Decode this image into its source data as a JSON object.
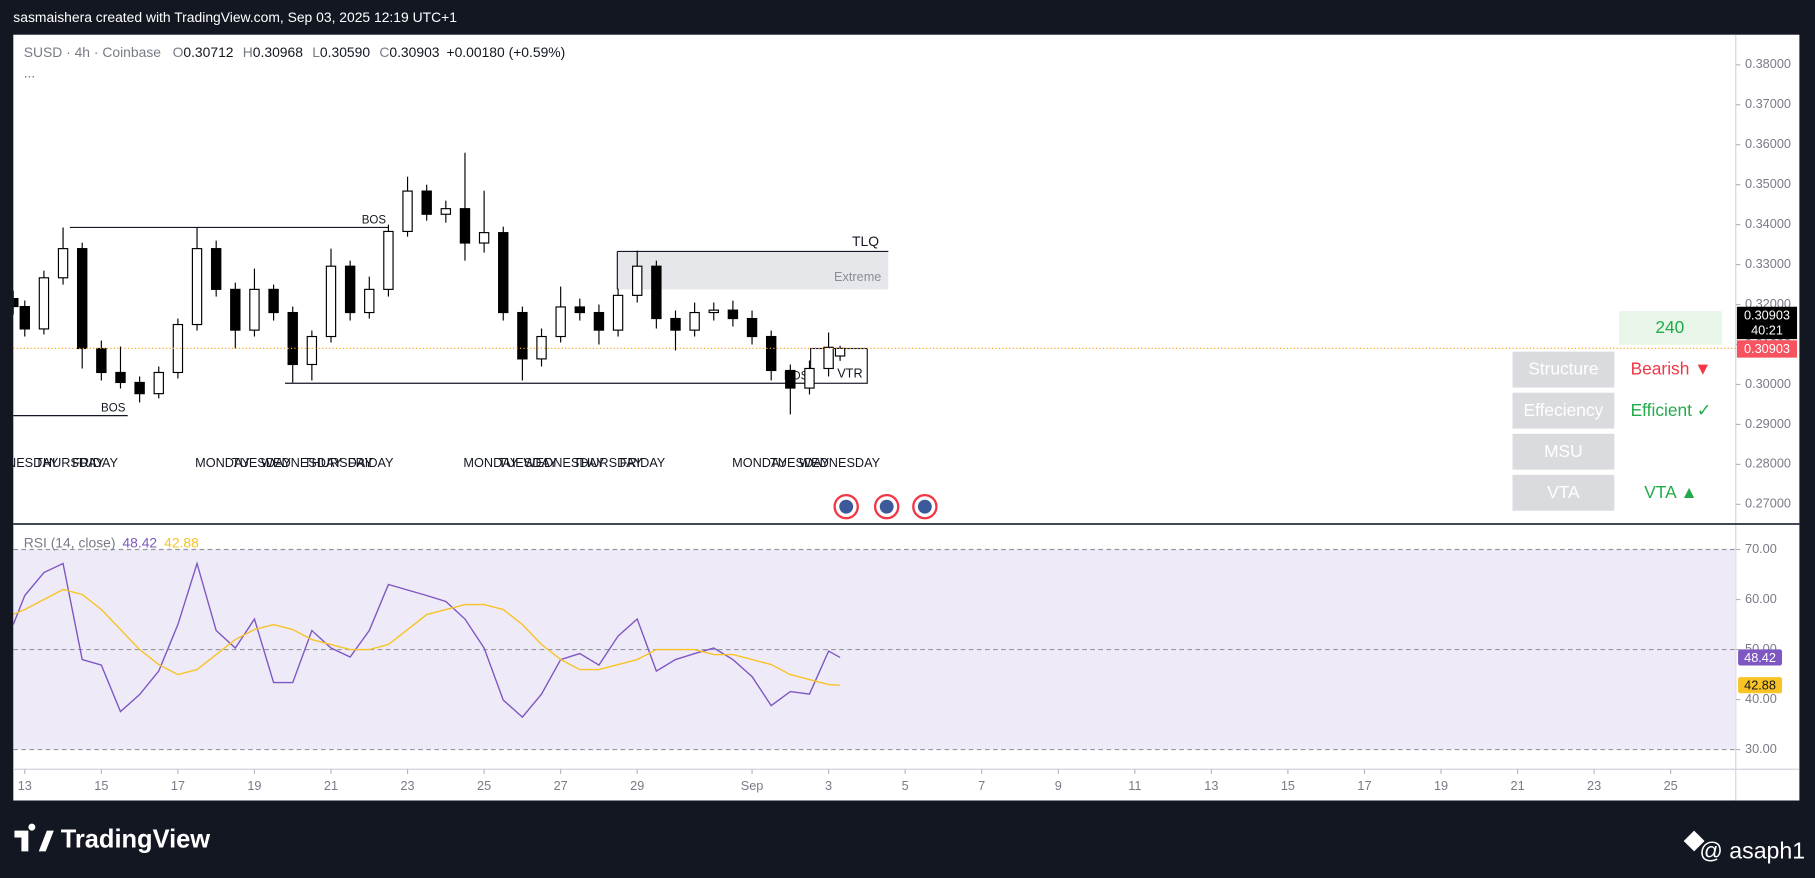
{
  "header": "sasmaishera created with TradingView.com, Sep 03, 2025 12:19 UTC+1",
  "footer": {
    "brand": "TradingView",
    "author": "@ asaph1"
  },
  "chart_data": [
    {
      "type": "candlestick",
      "symbol": "SUSD · 4h · Coinbase",
      "legend": [
        [
          "O",
          "0.30712"
        ],
        [
          "H",
          "0.30968"
        ],
        [
          "L",
          "0.30590"
        ],
        [
          "C",
          "0.30903"
        ]
      ],
      "change": "+0.00180 (+0.59%)",
      "more": "...",
      "x": [
        -0.3,
        0,
        0.5,
        1,
        1.5,
        2,
        2.5,
        3,
        3.5,
        4,
        4.5,
        5,
        5.5,
        6,
        6.5,
        7,
        7.5,
        8,
        8.5,
        9,
        9.5,
        10,
        10.5,
        11,
        11.5,
        12,
        12.5,
        13,
        13.5,
        14,
        14.5,
        15,
        15.5,
        16,
        16.5,
        17,
        17.5,
        18,
        18.5,
        19,
        19.5,
        20,
        20.5,
        21,
        21.3
      ],
      "candles": [
        [
          0.3215,
          0.3235,
          0.3175,
          0.3195
        ],
        [
          0.3195,
          0.321,
          0.312,
          0.3139
        ],
        [
          0.3139,
          0.3285,
          0.3125,
          0.3267
        ],
        [
          0.3267,
          0.3393,
          0.325,
          0.334
        ],
        [
          0.334,
          0.3355,
          0.304,
          0.309
        ],
        [
          0.309,
          0.311,
          0.301,
          0.303
        ],
        [
          0.303,
          0.3095,
          0.299,
          0.3005
        ],
        [
          0.3005,
          0.302,
          0.2955,
          0.2977
        ],
        [
          0.2977,
          0.3045,
          0.2965,
          0.303
        ],
        [
          0.303,
          0.3165,
          0.3015,
          0.315
        ],
        [
          0.315,
          0.3393,
          0.3135,
          0.334
        ],
        [
          0.334,
          0.336,
          0.322,
          0.3238
        ],
        [
          0.3238,
          0.3255,
          0.309,
          0.3136
        ],
        [
          0.3136,
          0.329,
          0.312,
          0.3238
        ],
        [
          0.3238,
          0.325,
          0.316,
          0.318
        ],
        [
          0.318,
          0.3195,
          0.3005,
          0.305
        ],
        [
          0.305,
          0.3135,
          0.301,
          0.312
        ],
        [
          0.312,
          0.334,
          0.3105,
          0.3296
        ],
        [
          0.3296,
          0.331,
          0.316,
          0.318
        ],
        [
          0.318,
          0.327,
          0.3165,
          0.3238
        ],
        [
          0.3238,
          0.34,
          0.322,
          0.3383
        ],
        [
          0.3383,
          0.352,
          0.337,
          0.3484
        ],
        [
          0.3484,
          0.35,
          0.341,
          0.3426
        ],
        [
          0.3426,
          0.346,
          0.3405,
          0.344
        ],
        [
          0.344,
          0.358,
          0.331,
          0.3354
        ],
        [
          0.3354,
          0.3485,
          0.333,
          0.338
        ],
        [
          0.338,
          0.3395,
          0.316,
          0.318
        ],
        [
          0.318,
          0.3195,
          0.301,
          0.3064
        ],
        [
          0.3064,
          0.314,
          0.3045,
          0.312
        ],
        [
          0.312,
          0.3245,
          0.3105,
          0.3194
        ],
        [
          0.3194,
          0.3215,
          0.316,
          0.318
        ],
        [
          0.318,
          0.32,
          0.31,
          0.3136
        ],
        [
          0.3136,
          0.324,
          0.312,
          0.3223
        ],
        [
          0.3223,
          0.3335,
          0.3205,
          0.3296
        ],
        [
          0.3296,
          0.331,
          0.314,
          0.3165
        ],
        [
          0.3165,
          0.3185,
          0.3085,
          0.3136
        ],
        [
          0.3136,
          0.3205,
          0.312,
          0.318
        ],
        [
          0.318,
          0.3205,
          0.316,
          0.3186
        ],
        [
          0.3186,
          0.321,
          0.3145,
          0.3165
        ],
        [
          0.3165,
          0.3185,
          0.31,
          0.312
        ],
        [
          0.312,
          0.3135,
          0.301,
          0.3035
        ],
        [
          0.3035,
          0.305,
          0.2925,
          0.2991
        ],
        [
          0.2991,
          0.306,
          0.2975,
          0.304
        ],
        [
          0.304,
          0.313,
          0.302,
          0.3093
        ],
        [
          0.30712,
          0.30968,
          0.3059,
          0.30903
        ]
      ],
      "up_color": "#ffffff",
      "down_color": "#000000",
      "outline_color": "#000000",
      "xlim": [
        -0.3,
        44.7
      ],
      "ylim": [
        0.26507,
        0.38754
      ],
      "yticks": [
        {
          "value": 0.27,
          "label": "0.27000"
        },
        {
          "value": 0.28,
          "label": "0.28000"
        },
        {
          "value": 0.29,
          "label": "0.29000"
        },
        {
          "value": 0.3,
          "label": "0.30000"
        },
        {
          "value": 0.31,
          "label": "0.31000"
        },
        {
          "value": 0.32,
          "label": "0.32000"
        },
        {
          "value": 0.33,
          "label": "0.33000"
        },
        {
          "value": 0.34,
          "label": "0.34000"
        },
        {
          "value": 0.35,
          "label": "0.35000"
        },
        {
          "value": 0.36,
          "label": "0.36000"
        },
        {
          "value": 0.37,
          "label": "0.37000"
        },
        {
          "value": 0.38,
          "label": "0.38000"
        }
      ],
      "xticks": [
        {
          "value": 0,
          "label": "13"
        },
        {
          "value": 2,
          "label": "15"
        },
        {
          "value": 4,
          "label": "17"
        },
        {
          "value": 6,
          "label": "19"
        },
        {
          "value": 8,
          "label": "21"
        },
        {
          "value": 10,
          "label": "23"
        },
        {
          "value": 12,
          "label": "25"
        },
        {
          "value": 14,
          "label": "27"
        },
        {
          "value": 16,
          "label": "29"
        },
        {
          "value": 19,
          "label": "Sep"
        },
        {
          "value": 21,
          "label": "3"
        },
        {
          "value": 23,
          "label": "5"
        },
        {
          "value": 25,
          "label": "7"
        },
        {
          "value": 27,
          "label": "9"
        },
        {
          "value": 29,
          "label": "11"
        },
        {
          "value": 31,
          "label": "13"
        },
        {
          "value": 33,
          "label": "15"
        },
        {
          "value": 35,
          "label": "17"
        },
        {
          "value": 37,
          "label": "19"
        },
        {
          "value": 39,
          "label": "21"
        },
        {
          "value": 41,
          "label": "23"
        },
        {
          "value": 43,
          "label": "25"
        }
      ],
      "last_price": 0.30903,
      "countdown": "40:21",
      "last_color": "#f7525f",
      "last_line_color": "#f5a623",
      "levels": [
        {
          "label": "BOS",
          "price": 0.3393,
          "from": 1.18,
          "to": 9.5
        },
        {
          "label": "BOS",
          "price": 0.2922,
          "from": -0.3,
          "to": 2.69
        },
        {
          "label": "BOS",
          "price": 0.3003,
          "from": 6.8,
          "to": 20.53
        }
      ],
      "zones": [
        {
          "label": "TLQ",
          "sublabel": "Extreme",
          "top": 0.3333,
          "bottom": 0.3238,
          "from": 15.48,
          "to": 22.56
        },
        {
          "label": "VTR",
          "top": 0.309,
          "bottom": 0.3003,
          "from": 20.53,
          "to": 22.01
        }
      ],
      "session_labels": [
        {
          "x": -1.24,
          "label": "WEDNESDAY"
        },
        {
          "x": 0.27,
          "label": "THURSDAY"
        },
        {
          "x": 1.24,
          "label": "FRIDAY"
        },
        {
          "x": 4.45,
          "label": "MONDAY"
        },
        {
          "x": 5.41,
          "label": "TUESDAY"
        },
        {
          "x": 6.17,
          "label": "WEDNESDAY"
        },
        {
          "x": 7.29,
          "label": "THURSDAY"
        },
        {
          "x": 8.44,
          "label": "FRIDAY"
        },
        {
          "x": 11.46,
          "label": "MONDAY"
        },
        {
          "x": 12.37,
          "label": "TUESDAY"
        },
        {
          "x": 13.03,
          "label": "WEDNESDAY"
        },
        {
          "x": 14.33,
          "label": "THURSDAY"
        },
        {
          "x": 15.54,
          "label": "FRIDAY"
        },
        {
          "x": 18.48,
          "label": "MONDAY"
        },
        {
          "x": 19.47,
          "label": "TUESDAY"
        },
        {
          "x": 20.23,
          "label": "WEDNESDAY"
        }
      ],
      "panel": {
        "timeframe": "240",
        "rows": [
          {
            "label": "Structure",
            "value": "Bearish ▼",
            "color": "#f23645"
          },
          {
            "label": "Effeciency",
            "value": "Efficient ✓",
            "color": "#22ab4a"
          },
          {
            "label": "MSU"
          },
          {
            "label": "VTA",
            "value": "VTA ▲",
            "color": "#22ab4a"
          }
        ]
      }
    },
    {
      "type": "line",
      "title": "RSI (14, close)",
      "series": [
        {
          "color": "#7e57c2",
          "values": [
            55,
            60.8,
            65.4,
            67.2,
            48,
            46.9,
            37.6,
            41,
            45.7,
            55,
            67.2,
            53.8,
            50.3,
            56.1,
            43.4,
            43.4,
            53.8,
            50.3,
            48.5,
            53.8,
            63,
            61.9,
            60.8,
            59.6,
            56.1,
            50.3,
            39.9,
            36.5,
            41.1,
            48,
            49.2,
            46.9,
            52.7,
            56.1,
            45.7,
            48,
            49.2,
            50.3,
            48,
            44.6,
            38.8,
            41.6,
            41.1,
            49.7,
            48.42
          ]
        },
        {
          "color": "#f7c325",
          "values": [
            57,
            58,
            60,
            62,
            61,
            58,
            54,
            50,
            47,
            45,
            46,
            49,
            52,
            54,
            55,
            54,
            52,
            51,
            50,
            50,
            51,
            54,
            57,
            58,
            59,
            59,
            58,
            55,
            51,
            48,
            46,
            46,
            47,
            48,
            50,
            50,
            50,
            49,
            49,
            48,
            47,
            45,
            44,
            43,
            42.88
          ]
        }
      ],
      "ylim": [
        26.07,
        75.09
      ],
      "yticks": [
        {
          "value": 30,
          "label": "30.00"
        },
        {
          "value": 40,
          "label": "40.00"
        },
        {
          "value": 50,
          "label": "50.00"
        },
        {
          "value": 60,
          "label": "60.00"
        },
        {
          "value": 70,
          "label": "70.00"
        }
      ],
      "band": [
        30,
        70
      ],
      "band_color": "#efeaf8",
      "dashed_levels": [
        30,
        50,
        70
      ]
    }
  ]
}
